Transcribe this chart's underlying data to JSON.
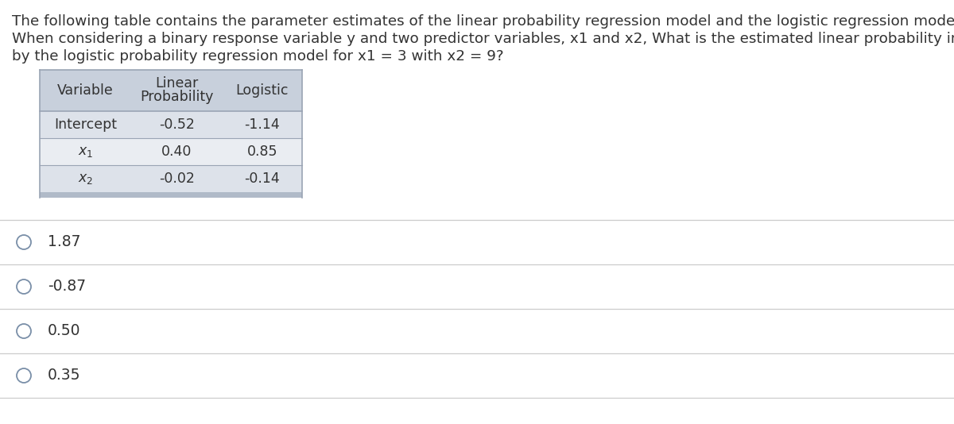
{
  "question_lines": [
    "The following table contains the parameter estimates of the linear probability regression model and the logistic regression model.",
    "When considering a binary response variable y and two predictor variables, x1 and x2, What is the estimated linear probability implied",
    "by the logistic probability regression model for x1 = 3 with x2 = 9?"
  ],
  "table": {
    "header_line1": [
      "",
      "Linear",
      ""
    ],
    "header_line2": [
      "Variable",
      "Probability",
      "Logistic"
    ],
    "rows": [
      [
        "Intercept",
        "-0.52",
        "-1.14"
      ],
      [
        "x₁",
        "0.40",
        "0.85"
      ],
      [
        "x₂",
        "-0.02",
        "-0.14"
      ]
    ]
  },
  "options": [
    "1.87",
    "-0.87",
    "0.50",
    "0.35"
  ],
  "bg_color": "#ffffff",
  "text_color": "#333333",
  "table_header_bg": "#c8d0dc",
  "table_row0_bg": "#dde2ea",
  "table_row1_bg": "#eaedf2",
  "table_row2_bg": "#dde2ea",
  "table_border_color": "#9aa4b4",
  "table_bottom_bar_color": "#b0bac8",
  "option_divider_color": "#cccccc",
  "circle_color": "#7a8fa8",
  "font_size_question": 13.2,
  "font_size_table_header": 12.5,
  "font_size_table_data": 12.5,
  "font_size_options": 13.5
}
